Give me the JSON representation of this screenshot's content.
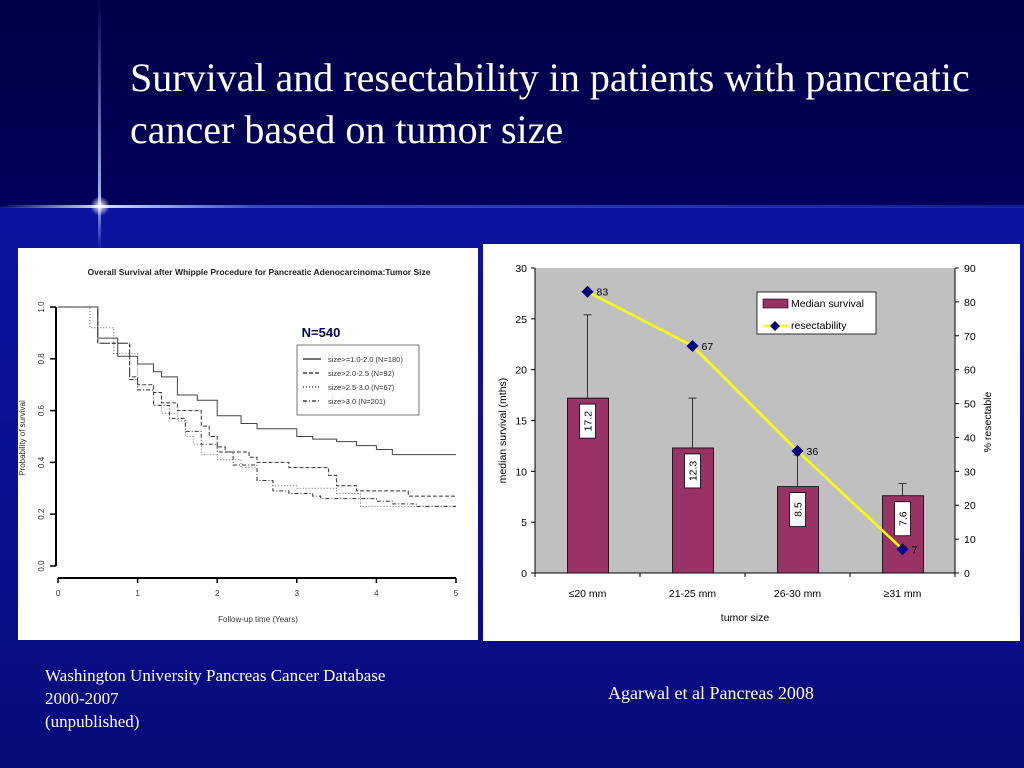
{
  "slide": {
    "title": "Survival and resectability in patients with pancreatic cancer based on tumor size",
    "left_caption": [
      "Washington University Pancreas Cancer Database",
      "2000-2007",
      "(unpublished)"
    ],
    "right_caption": "Agarwal et al Pancreas 2008"
  },
  "chart_data": [
    {
      "type": "line",
      "title": "Overall Survival after Whipple Procedure for Pancreatic Adenocarcinoma:Tumor Size",
      "annotation": "N=540",
      "xlabel": "Follow-up time (Years)",
      "ylabel": "Probability of survival",
      "xlim": [
        0,
        5
      ],
      "ylim": [
        0,
        1
      ],
      "xticks": [
        "0",
        "1",
        "2",
        "3",
        "4",
        "5"
      ],
      "yticks": [
        "0.0",
        "0.2",
        "0.4",
        "0.6",
        "0.8",
        "1.0"
      ],
      "legend": "top-right",
      "grid": false,
      "step": true,
      "series": [
        {
          "name": "size>=1.0-2.0 (N=180)",
          "style": "solid",
          "points": [
            [
              0,
              1
            ],
            [
              0.5,
              0.88
            ],
            [
              0.75,
              0.81
            ],
            [
              1,
              0.78
            ],
            [
              1.2,
              0.75
            ],
            [
              1.3,
              0.73
            ],
            [
              1.5,
              0.66
            ],
            [
              1.75,
              0.64
            ],
            [
              2,
              0.58
            ],
            [
              2.3,
              0.55
            ],
            [
              2.5,
              0.53
            ],
            [
              2.85,
              0.53
            ],
            [
              3,
              0.5
            ],
            [
              3.2,
              0.49
            ],
            [
              3.5,
              0.48
            ],
            [
              3.75,
              0.465
            ],
            [
              4,
              0.45
            ],
            [
              4.2,
              0.43
            ],
            [
              5,
              0.43
            ]
          ]
        },
        {
          "name": "size>2.0-2.5 (N=92)",
          "style": "dashed",
          "points": [
            [
              0,
              1
            ],
            [
              0.5,
              0.86
            ],
            [
              0.9,
              0.73
            ],
            [
              1,
              0.7
            ],
            [
              1.2,
              0.67
            ],
            [
              1.3,
              0.63
            ],
            [
              1.5,
              0.6
            ],
            [
              1.65,
              0.6
            ],
            [
              1.8,
              0.54
            ],
            [
              1.9,
              0.5
            ],
            [
              2,
              0.46
            ],
            [
              2.1,
              0.44
            ],
            [
              2.4,
              0.42
            ],
            [
              2.5,
              0.4
            ],
            [
              2.85,
              0.4
            ],
            [
              2.9,
              0.38
            ],
            [
              3.3,
              0.38
            ],
            [
              3.4,
              0.35
            ],
            [
              3.5,
              0.31
            ],
            [
              3.75,
              0.29
            ],
            [
              4.4,
              0.27
            ],
            [
              5,
              0.27
            ]
          ]
        },
        {
          "name": "size>2.5-3.0 (N=67)",
          "style": "dotted",
          "points": [
            [
              0,
              1
            ],
            [
              0.4,
              0.92
            ],
            [
              0.7,
              0.82
            ],
            [
              1,
              0.68
            ],
            [
              1.2,
              0.62
            ],
            [
              1.3,
              0.59
            ],
            [
              1.5,
              0.56
            ],
            [
              1.6,
              0.5
            ],
            [
              1.7,
              0.47
            ],
            [
              1.8,
              0.43
            ],
            [
              2,
              0.41
            ],
            [
              2.3,
              0.38
            ],
            [
              2.5,
              0.33
            ],
            [
              2.7,
              0.31
            ],
            [
              3,
              0.3
            ],
            [
              3.5,
              0.28
            ],
            [
              3.8,
              0.23
            ],
            [
              5,
              0.23
            ]
          ]
        },
        {
          "name": "size>3.0 (N=201)",
          "style": "dashdot",
          "points": [
            [
              0,
              1
            ],
            [
              0.5,
              0.86
            ],
            [
              0.9,
              0.72
            ],
            [
              1,
              0.68
            ],
            [
              1.2,
              0.62
            ],
            [
              1.4,
              0.57
            ],
            [
              1.6,
              0.52
            ],
            [
              1.8,
              0.47
            ],
            [
              2,
              0.44
            ],
            [
              2.2,
              0.39
            ],
            [
              2.5,
              0.33
            ],
            [
              2.7,
              0.29
            ],
            [
              2.9,
              0.28
            ],
            [
              3.2,
              0.27
            ],
            [
              3.3,
              0.26
            ],
            [
              3.8,
              0.26
            ],
            [
              4,
              0.25
            ],
            [
              4.2,
              0.24
            ],
            [
              4.5,
              0.23
            ],
            [
              5,
              0.23
            ]
          ]
        }
      ]
    },
    {
      "type": "bar",
      "xlabel": "tumor size",
      "ylabel": "median survival (mths)",
      "y2label": "% resectable",
      "categories": [
        "≤20 mm",
        "21-25 mm",
        "26-30 mm",
        "≥31 mm"
      ],
      "ylim": [
        0,
        30
      ],
      "y2lim": [
        0,
        90
      ],
      "yticks": [
        "0",
        "5",
        "10",
        "15",
        "20",
        "25",
        "30"
      ],
      "y2ticks": [
        "0",
        "10",
        "20",
        "30",
        "40",
        "50",
        "60",
        "70",
        "80",
        "90"
      ],
      "legend": "top-right",
      "plot_background": "#c0c0c0",
      "series": [
        {
          "name": "Median survival",
          "type": "bar",
          "color": "#993366",
          "values": [
            17.2,
            12.3,
            8.5,
            7.6
          ],
          "labels": [
            "17.2",
            "12.3",
            "8.5",
            "7.6"
          ],
          "error_upper": [
            25.4,
            17.2,
            11.6,
            8.8
          ]
        },
        {
          "name": "resectability",
          "type": "line",
          "axis": "right",
          "color": "#ffff00",
          "marker_color": "#000080",
          "values": [
            83,
            67,
            36,
            7
          ],
          "labels": [
            "83",
            "67",
            "36",
            "7"
          ]
        }
      ]
    }
  ]
}
